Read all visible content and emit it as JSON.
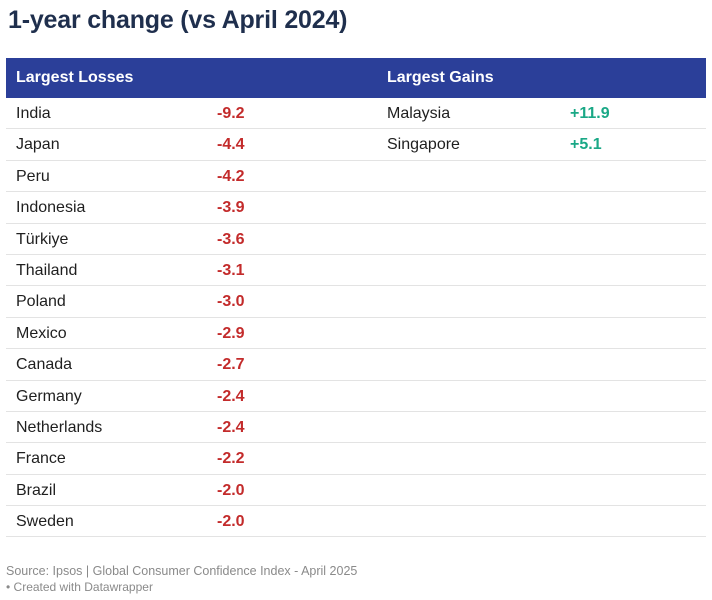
{
  "title": "1-year change (vs April 2024)",
  "colors": {
    "header_bg": "#2b3f99",
    "loss": "#c32b2b",
    "gain": "#1aa886"
  },
  "chart_data": {
    "type": "table",
    "title": "1-year change (vs April 2024)",
    "columns": [
      "Largest Losses",
      "Largest Gains"
    ],
    "losses": [
      {
        "country": "India",
        "value": "-9.2"
      },
      {
        "country": "Japan",
        "value": "-4.4"
      },
      {
        "country": "Peru",
        "value": "-4.2"
      },
      {
        "country": "Indonesia",
        "value": "-3.9"
      },
      {
        "country": "Türkiye",
        "value": "-3.6"
      },
      {
        "country": "Thailand",
        "value": "-3.1"
      },
      {
        "country": "Poland",
        "value": "-3.0"
      },
      {
        "country": "Mexico",
        "value": "-2.9"
      },
      {
        "country": "Canada",
        "value": "-2.7"
      },
      {
        "country": "Germany",
        "value": "-2.4"
      },
      {
        "country": "Netherlands",
        "value": "-2.4"
      },
      {
        "country": "France",
        "value": "-2.2"
      },
      {
        "country": "Brazil",
        "value": "-2.0"
      },
      {
        "country": "Sweden",
        "value": "-2.0"
      }
    ],
    "gains": [
      {
        "country": "Malaysia",
        "value": "+11.9"
      },
      {
        "country": "Singapore",
        "value": "+5.1"
      }
    ]
  },
  "footer": {
    "source": "Source: Ipsos | Global Consumer Confidence Index - April 2025",
    "created": "• Created with Datawrapper"
  }
}
